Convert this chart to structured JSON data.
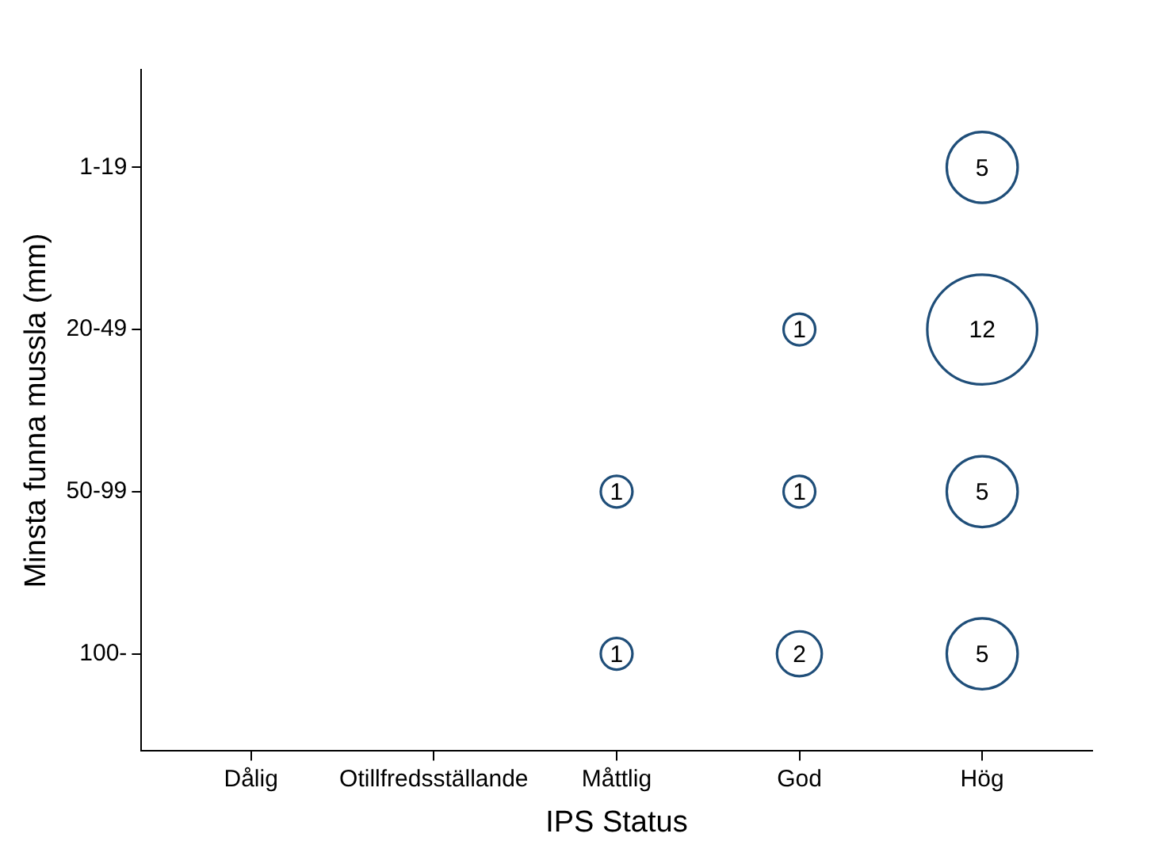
{
  "chart_data": {
    "type": "heatmap",
    "xlabel": "IPS Status",
    "ylabel": "Minsta funna mussla (mm)",
    "categories": [
      "Dålig",
      "Otillfredsställande",
      "Måttlig",
      "God",
      "Hög"
    ],
    "y_categories": [
      "1-19",
      "20-49",
      "50-99",
      "100-"
    ],
    "color": "#1f4e79",
    "cells": [
      [
        null,
        null,
        null,
        null,
        5
      ],
      [
        null,
        null,
        null,
        1,
        12
      ],
      [
        null,
        null,
        1,
        1,
        5
      ],
      [
        null,
        null,
        1,
        2,
        5
      ]
    ],
    "data_labels": true,
    "grid": false,
    "legend": false
  }
}
